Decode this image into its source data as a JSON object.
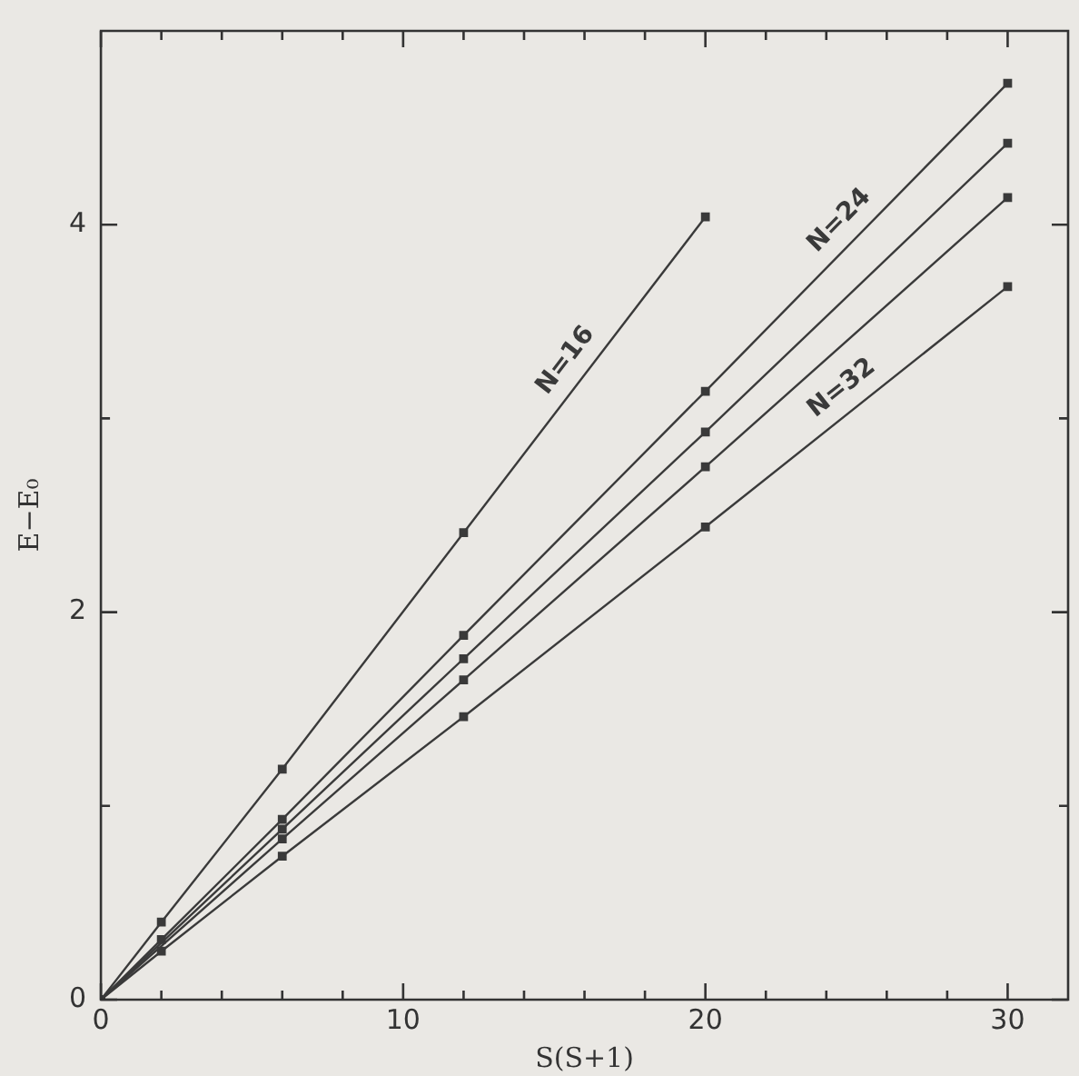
{
  "chart_data": {
    "type": "line",
    "xlabel": "S(S+1)",
    "ylabel": "E−E₀",
    "x": [
      0,
      2,
      6,
      12,
      20,
      30
    ],
    "series": [
      {
        "name": "N=16",
        "color": "#3a3a3a",
        "x": [
          0,
          2,
          6,
          12,
          20
        ],
        "values": [
          0,
          0.4,
          1.19,
          2.41,
          4.04
        ]
      },
      {
        "name": "N=24",
        "color": "#3a3a3a",
        "values": [
          0,
          0.31,
          0.93,
          1.88,
          3.14,
          4.73
        ]
      },
      {
        "color": "#3a3a3a",
        "values": [
          0,
          null,
          0.88,
          1.76,
          2.93,
          4.42
        ]
      },
      {
        "color": "#3a3a3a",
        "values": [
          0,
          null,
          0.83,
          1.65,
          2.75,
          4.14
        ]
      },
      {
        "name": "N=32",
        "color": "#3a3a3a",
        "values": [
          0,
          0.25,
          0.74,
          1.46,
          2.44,
          3.68
        ]
      }
    ],
    "xlim": [
      0,
      32
    ],
    "xticks": [
      0,
      {
        "value": 2,
        "label": null
      },
      {
        "value": 4,
        "label": null
      },
      {
        "value": 6,
        "label": null
      },
      {
        "value": 8,
        "label": null
      },
      10,
      {
        "value": 12,
        "label": null
      },
      {
        "value": 14,
        "label": null
      },
      {
        "value": 16,
        "label": null
      },
      {
        "value": 18,
        "label": null
      },
      20,
      {
        "value": 22,
        "label": null
      },
      {
        "value": 24,
        "label": null
      },
      {
        "value": 26,
        "label": null
      },
      {
        "value": 28,
        "label": null
      },
      30
    ],
    "ylim": [
      0,
      5
    ],
    "yticks": [
      0,
      {
        "value": 1,
        "label": null
      },
      2,
      {
        "value": 3,
        "label": null
      },
      4
    ],
    "grid": false,
    "legend": false,
    "marker": "square",
    "line_style": "solid"
  }
}
